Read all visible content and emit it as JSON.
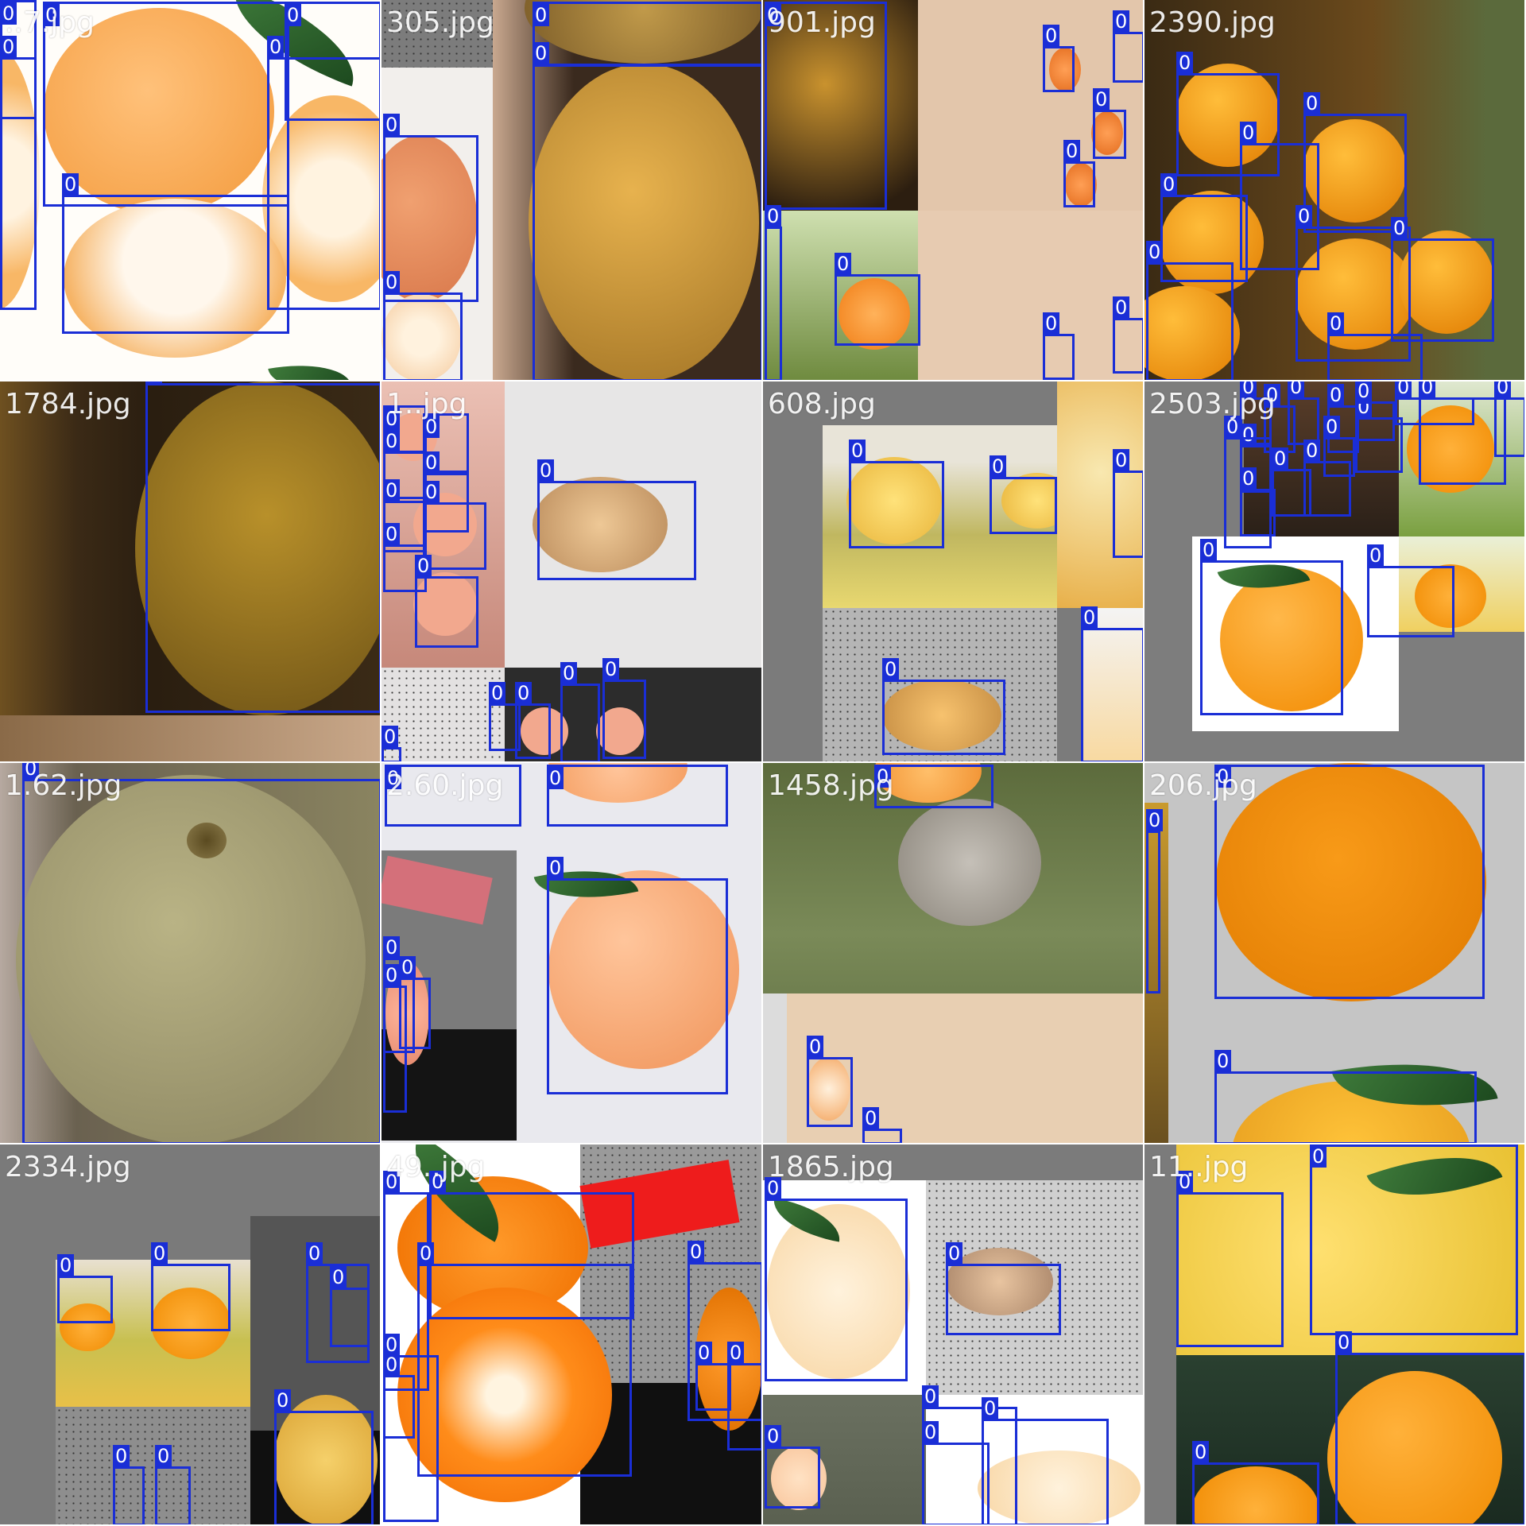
{
  "mosaic": {
    "class_label": "0",
    "box_color": "#1a2ed6",
    "tiles": [
      {
        "name": "..7.jpg"
      },
      {
        "name": "305.jpg"
      },
      {
        "name": "901.jpg"
      },
      {
        "name": "2390.jpg"
      },
      {
        "name": "1784.jpg"
      },
      {
        "name": "1..jpg"
      },
      {
        "name": "608.jpg"
      },
      {
        "name": "2503.jpg"
      },
      {
        "name": "1.62.jpg"
      },
      {
        "name": "2.60.jpg"
      },
      {
        "name": "1458.jpg"
      },
      {
        "name": "206.jpg"
      },
      {
        "name": "2334.jpg"
      },
      {
        "name": "49..jpg"
      },
      {
        "name": "1865.jpg"
      },
      {
        "name": "11..jpg"
      }
    ]
  }
}
